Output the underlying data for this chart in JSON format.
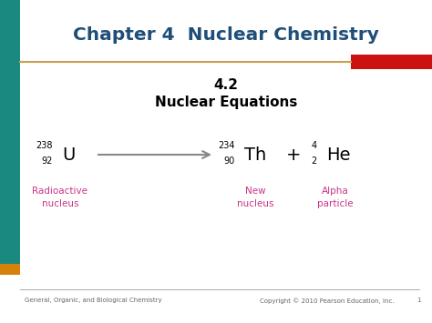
{
  "title": "Chapter 4  Nuclear Chemistry",
  "title_color": "#1F4E79",
  "subtitle1": "4.2",
  "subtitle2": "Nuclear Equations",
  "subtitle_color": "#000000",
  "bg_color": "#FFFFFF",
  "teal_bar_color": "#1A8A80",
  "orange_accent_color": "#D4820A",
  "orange_line_color": "#C8A050",
  "red_bar_color": "#CC1111",
  "arrow_color": "#888888",
  "equation": {
    "U_mass": "238",
    "U_atomic": "92",
    "U_symbol": "U",
    "Th_mass": "234",
    "Th_atomic": "90",
    "Th_symbol": "Th",
    "He_mass": "4",
    "He_atomic": "2",
    "He_symbol": "He",
    "plus": "+",
    "label1": "Radioactive\nnucleus",
    "label2": "New\nnucleus",
    "label3": "Alpha\nparticle",
    "label_color": "#CC3388"
  },
  "footer_left": "General, Organic, and Biological Chemistry",
  "footer_right": "Copyright © 2010 Pearson Education, Inc.",
  "footer_page": "1",
  "footer_color": "#666666"
}
